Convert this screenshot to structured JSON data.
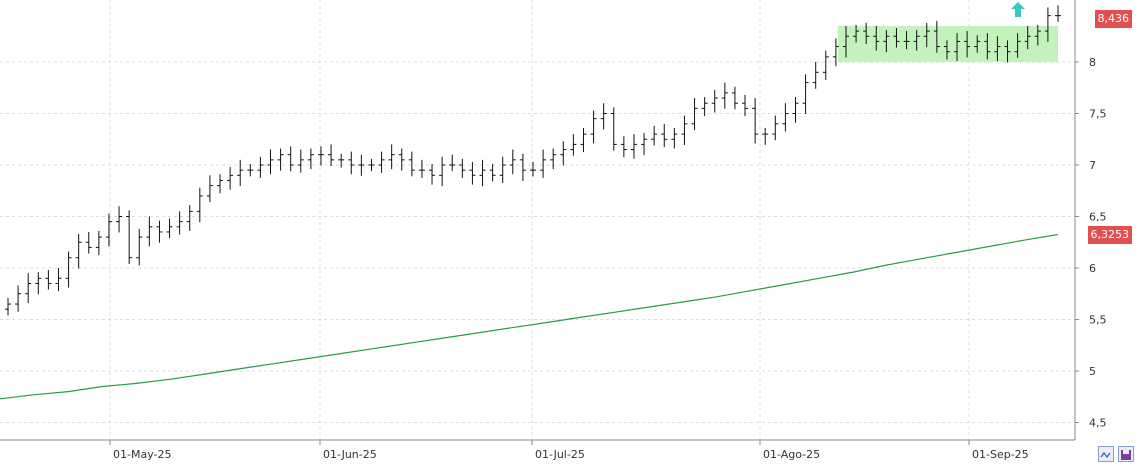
{
  "chart_data": {
    "type": "ohlc",
    "xlabels": [
      "01-May-25",
      "01-Jun-25",
      "01-Jul-25",
      "01-Ago-25",
      "01-Sep-25"
    ],
    "ylim": [
      4.3,
      8.6
    ],
    "yticks": [
      "4,5",
      "5",
      "5,5",
      "6",
      "6,5",
      "7",
      "7,5",
      "8"
    ],
    "last_price_label": "8,436",
    "ma_label": "6,3253",
    "ohlc_closes": [
      5.65,
      5.75,
      5.85,
      5.9,
      5.85,
      5.9,
      6.1,
      6.25,
      6.2,
      6.3,
      6.45,
      6.5,
      6.1,
      6.3,
      6.4,
      6.35,
      6.4,
      6.45,
      6.55,
      6.7,
      6.8,
      6.85,
      6.9,
      6.95,
      6.95,
      7.0,
      7.05,
      7.1,
      7.0,
      7.05,
      7.1,
      7.1,
      7.05,
      7.05,
      7.0,
      7.0,
      7.0,
      7.05,
      7.1,
      7.05,
      6.95,
      6.95,
      6.9,
      7.0,
      7.0,
      6.95,
      6.9,
      6.95,
      6.9,
      7.0,
      7.05,
      6.95,
      6.95,
      7.05,
      7.1,
      7.15,
      7.2,
      7.3,
      7.45,
      7.5,
      7.2,
      7.15,
      7.2,
      7.25,
      7.3,
      7.25,
      7.3,
      7.4,
      7.55,
      7.6,
      7.65,
      7.7,
      7.6,
      7.55,
      7.3,
      7.3,
      7.4,
      7.5,
      7.6,
      7.8,
      7.9,
      8.05,
      8.15,
      8.25,
      8.3,
      8.25,
      8.2,
      8.25,
      8.2,
      8.2,
      8.25,
      8.3,
      8.15,
      8.1,
      8.2,
      8.15,
      8.2,
      8.1,
      8.15,
      8.1,
      8.2,
      8.25,
      8.3,
      8.45,
      8.45
    ],
    "moving_average": [
      4.73,
      4.77,
      4.8,
      4.85,
      4.88,
      4.92,
      4.97,
      5.02,
      5.07,
      5.12,
      5.17,
      5.22,
      5.27,
      5.32,
      5.37,
      5.42,
      5.47,
      5.52,
      5.57,
      5.62,
      5.67,
      5.72,
      5.78,
      5.84,
      5.9,
      5.96,
      6.03,
      6.09,
      6.15,
      6.21,
      6.27,
      6.325
    ],
    "consolidation_range": [
      8.0,
      8.35
    ]
  }
}
